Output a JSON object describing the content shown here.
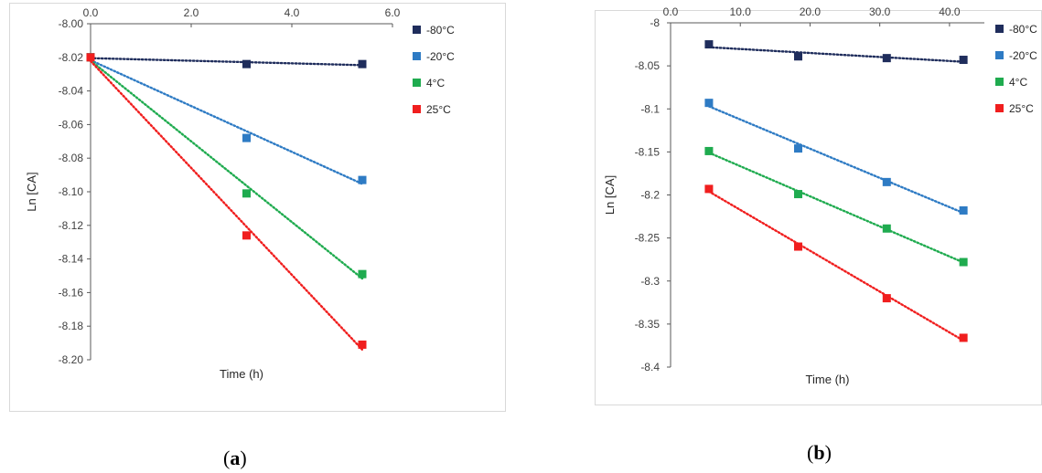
{
  "chart_data": [
    {
      "id": "a",
      "type": "scatter",
      "caption_letter": "a",
      "xlabel": "Time (h)",
      "ylabel": "Ln [CA]",
      "xlim": [
        0,
        6
      ],
      "ylim": [
        -8.2,
        -8.0
      ],
      "xticks": [
        "0.0",
        "2.0",
        "4.0",
        "6.0"
      ],
      "xtick_values": [
        0,
        2,
        4,
        6
      ],
      "yticks": [
        "-8.00",
        "-8.02",
        "-8.04",
        "-8.06",
        "-8.08",
        "-8.10",
        "-8.12",
        "-8.14",
        "-8.16",
        "-8.18",
        "-8.20"
      ],
      "ytick_values": [
        -8.0,
        -8.02,
        -8.04,
        -8.06,
        -8.08,
        -8.1,
        -8.12,
        -8.14,
        -8.16,
        -8.18,
        -8.2
      ],
      "legend_position": "top-right",
      "trendline": "linear-dotted",
      "series": [
        {
          "name": "-80°C",
          "color": "#1f2d5c",
          "x": [
            0,
            3.1,
            5.4
          ],
          "y": [
            -8.02,
            -8.024,
            -8.024
          ]
        },
        {
          "name": "-20°C",
          "color": "#2e7bc4",
          "x": [
            0,
            3.1,
            5.4
          ],
          "y": [
            -8.02,
            -8.068,
            -8.093
          ]
        },
        {
          "name": "4°C",
          "color": "#1fab4f",
          "x": [
            0,
            3.1,
            5.4
          ],
          "y": [
            -8.02,
            -8.101,
            -8.149
          ]
        },
        {
          "name": "25°C",
          "color": "#f01e1e",
          "x": [
            0,
            3.1,
            5.4
          ],
          "y": [
            -8.02,
            -8.126,
            -8.191
          ]
        }
      ]
    },
    {
      "id": "b",
      "type": "scatter",
      "caption_letter": "b",
      "xlabel": "Time (h)",
      "ylabel": "Ln [CA]",
      "xlim": [
        0,
        45
      ],
      "ylim": [
        -8.4,
        -8.0
      ],
      "xticks": [
        "0.0",
        "10.0",
        "20.0",
        "30.0",
        "40.0"
      ],
      "xtick_values": [
        0,
        10,
        20,
        30,
        40
      ],
      "yticks": [
        "-8",
        "-8.05",
        "-8.1",
        "-8.15",
        "-8.2",
        "-8.25",
        "-8.3",
        "-8.35",
        "-8.4"
      ],
      "ytick_values": [
        -8.0,
        -8.05,
        -8.1,
        -8.15,
        -8.2,
        -8.25,
        -8.3,
        -8.35,
        -8.4
      ],
      "legend_position": "top-right",
      "trendline": "linear-dotted",
      "series": [
        {
          "name": "-80°C",
          "color": "#1f2d5c",
          "x": [
            5.5,
            18.3,
            31,
            42
          ],
          "y": [
            -8.025,
            -8.039,
            -8.041,
            -8.043
          ]
        },
        {
          "name": "-20°C",
          "color": "#2e7bc4",
          "x": [
            5.5,
            18.3,
            31,
            42
          ],
          "y": [
            -8.093,
            -8.146,
            -8.185,
            -8.218
          ]
        },
        {
          "name": "4°C",
          "color": "#1fab4f",
          "x": [
            5.5,
            18.3,
            31,
            42
          ],
          "y": [
            -8.149,
            -8.199,
            -8.239,
            -8.278
          ]
        },
        {
          "name": "25°C",
          "color": "#f01e1e",
          "x": [
            5.5,
            18.3,
            31,
            42
          ],
          "y": [
            -8.193,
            -8.26,
            -8.32,
            -8.366
          ]
        }
      ]
    }
  ]
}
